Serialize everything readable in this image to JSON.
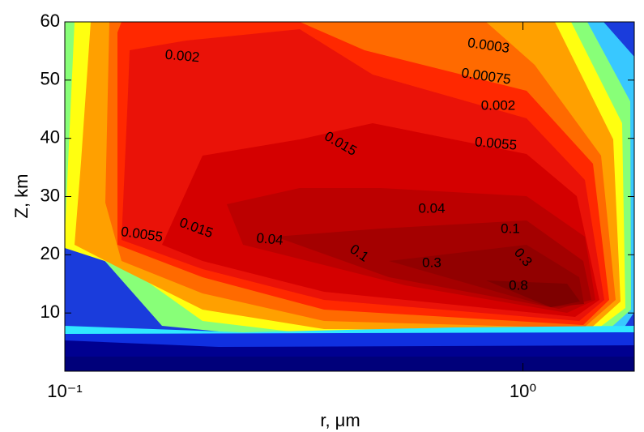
{
  "chart_data": {
    "type": "contour",
    "x_label": "r, μm",
    "y_label": "Z, km",
    "x_scale": "log",
    "xlim": [
      0.1,
      1.75
    ],
    "ylim": [
      0,
      60
    ],
    "xticks": [
      {
        "value": 0.1,
        "label": "10⁻¹"
      },
      {
        "value": 1,
        "label": "10⁰"
      }
    ],
    "yticks": [
      10,
      20,
      30,
      40,
      50,
      60
    ],
    "levels": [
      0.0003,
      0.00075,
      0.002,
      0.0055,
      0.015,
      0.04,
      0.1,
      0.3,
      0.8
    ],
    "level_colors": [
      "#ffa000",
      "#ff6a00",
      "#ff2800",
      "#ea1208",
      "#d40000",
      "#bc0000",
      "#a40000",
      "#920000",
      "#7e0000"
    ],
    "contour_labels": [
      0.002,
      0.0003,
      0.00075,
      0.002,
      0.0055,
      0.015,
      0.04,
      0.1,
      0.0055,
      0.015,
      0.04,
      0.1,
      0.3,
      0.3,
      0.8
    ]
  }
}
